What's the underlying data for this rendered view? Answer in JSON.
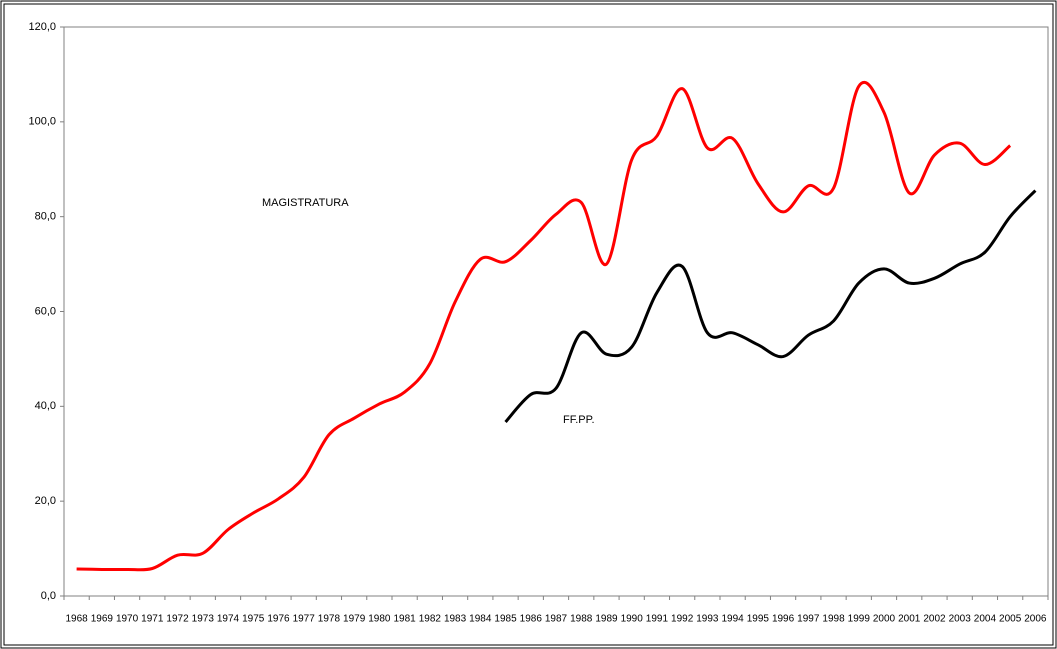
{
  "chart_data": {
    "type": "line",
    "categories": [
      "1968",
      "1969",
      "1970",
      "1971",
      "1972",
      "1973",
      "1974",
      "1975",
      "1976",
      "1977",
      "1978",
      "1979",
      "1980",
      "1981",
      "1982",
      "1983",
      "1984",
      "1985",
      "1986",
      "1987",
      "1988",
      "1989",
      "1990",
      "1991",
      "1992",
      "1993",
      "1994",
      "1995",
      "1996",
      "1997",
      "1998",
      "1999",
      "2000",
      "2001",
      "2002",
      "2003",
      "2004",
      "2005",
      "2006"
    ],
    "series": [
      {
        "name": "MAGISTRATURA",
        "color": "#ff0000",
        "values": [
          5.7,
          5.6,
          5.6,
          5.8,
          8.6,
          9.0,
          14,
          17.5,
          20.5,
          25,
          34,
          37.5,
          40.5,
          43,
          49,
          62,
          71,
          70.5,
          75,
          80.5,
          83,
          70,
          92,
          97,
          107,
          94.5,
          96.5,
          87,
          81,
          86.5,
          86,
          107.5,
          102,
          85,
          93,
          95.5,
          91,
          95,
          null
        ]
      },
      {
        "name": "FF.PP.",
        "color": "#000000",
        "values": [
          null,
          null,
          null,
          null,
          null,
          null,
          null,
          null,
          null,
          null,
          null,
          null,
          null,
          null,
          null,
          null,
          null,
          36.7,
          42.5,
          43.8,
          55.5,
          51,
          52.5,
          64,
          69.5,
          55.5,
          55.5,
          53,
          50.5,
          55,
          58,
          66,
          69,
          66,
          67,
          70,
          72.5,
          80,
          85.5
        ]
      }
    ],
    "ylim": [
      0,
      120
    ],
    "yticks": [
      {
        "value": 0,
        "label": "0,0"
      },
      {
        "value": 20,
        "label": "20,0"
      },
      {
        "value": 40,
        "label": "40,0"
      },
      {
        "value": 60,
        "label": "60,0"
      },
      {
        "value": 80,
        "label": "80,0"
      },
      {
        "value": 100,
        "label": "100,0"
      },
      {
        "value": 120,
        "label": "120,0"
      }
    ]
  }
}
